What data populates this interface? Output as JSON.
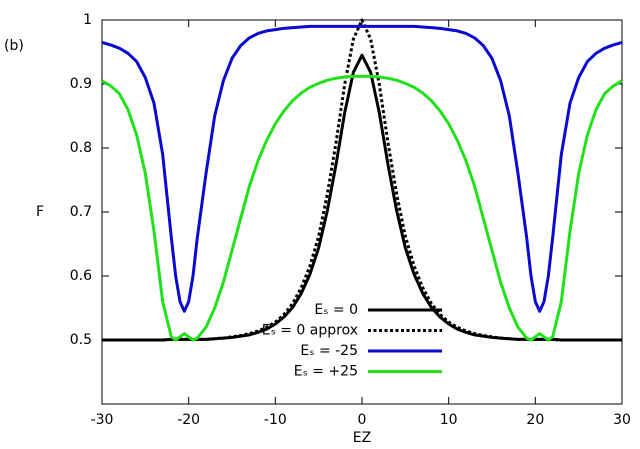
{
  "chart_data": {
    "type": "line",
    "panel_label": "(b)",
    "xlabel": "EZ",
    "ylabel": "F",
    "xlim": [
      -30,
      30
    ],
    "ylim": [
      0.4,
      1
    ],
    "xticks": [
      -30,
      -20,
      -10,
      0,
      10,
      20,
      30
    ],
    "yticks": [
      0.5,
      0.6,
      0.7,
      0.8,
      0.9,
      1
    ],
    "grid": false,
    "legend_position": "bottom-center",
    "x": [
      -30,
      -29,
      -28,
      -27,
      -26,
      -25,
      -24,
      -23,
      -22,
      -21.5,
      -21,
      -20.5,
      -20,
      -19.5,
      -19,
      -18,
      -17,
      -16,
      -15,
      -14,
      -13,
      -12,
      -11,
      -10,
      -9,
      -8,
      -7,
      -6,
      -5,
      -4,
      -3,
      -2,
      -1,
      0,
      1,
      2,
      3,
      4,
      5,
      6,
      7,
      8,
      9,
      10,
      11,
      12,
      13,
      14,
      15,
      16,
      17,
      18,
      19,
      19.5,
      20,
      20.5,
      21,
      21.5,
      22,
      23,
      24,
      25,
      26,
      27,
      28,
      29,
      30
    ],
    "series": [
      {
        "name": "Eₛ = 0",
        "color": "#000000",
        "dash": "solid",
        "values": [
          0.5,
          0.5,
          0.5,
          0.5,
          0.5,
          0.5,
          0.5,
          0.5,
          0.501,
          0.501,
          0.501,
          0.501,
          0.501,
          0.501,
          0.501,
          0.501,
          0.502,
          0.503,
          0.504,
          0.506,
          0.508,
          0.512,
          0.517,
          0.525,
          0.536,
          0.551,
          0.573,
          0.603,
          0.644,
          0.702,
          0.774,
          0.855,
          0.918,
          0.945,
          0.918,
          0.855,
          0.774,
          0.702,
          0.644,
          0.603,
          0.573,
          0.551,
          0.536,
          0.525,
          0.517,
          0.512,
          0.508,
          0.506,
          0.504,
          0.503,
          0.502,
          0.501,
          0.501,
          0.501,
          0.501,
          0.501,
          0.501,
          0.501,
          0.501,
          0.5,
          0.5,
          0.5,
          0.5,
          0.5,
          0.5,
          0.5,
          0.5
        ]
      },
      {
        "name": "Eₛ = 0 approx",
        "color": "#000000",
        "dash": "dotted",
        "values": [
          0.5,
          0.5,
          0.5,
          0.5,
          0.5,
          0.5,
          0.5,
          0.5,
          0.501,
          0.501,
          0.501,
          0.501,
          0.501,
          0.501,
          0.501,
          0.501,
          0.502,
          0.503,
          0.505,
          0.507,
          0.51,
          0.514,
          0.52,
          0.528,
          0.54,
          0.557,
          0.582,
          0.616,
          0.662,
          0.728,
          0.808,
          0.899,
          0.97,
          1,
          0.97,
          0.899,
          0.808,
          0.728,
          0.662,
          0.616,
          0.582,
          0.557,
          0.54,
          0.528,
          0.52,
          0.514,
          0.51,
          0.507,
          0.505,
          0.503,
          0.502,
          0.501,
          0.501,
          0.501,
          0.501,
          0.501,
          0.501,
          0.501,
          0.501,
          0.5,
          0.5,
          0.5,
          0.5,
          0.5,
          0.5,
          0.5,
          0.5
        ]
      },
      {
        "name": "Eₛ = -25",
        "color": "#0a0ad2",
        "dash": "solid",
        "values": [
          0.965,
          0.961,
          0.956,
          0.948,
          0.935,
          0.91,
          0.87,
          0.79,
          0.66,
          0.6,
          0.56,
          0.545,
          0.56,
          0.6,
          0.66,
          0.76,
          0.85,
          0.905,
          0.94,
          0.96,
          0.972,
          0.979,
          0.983,
          0.985,
          0.987,
          0.988,
          0.989,
          0.99,
          0.99,
          0.99,
          0.99,
          0.99,
          0.99,
          0.99,
          0.99,
          0.99,
          0.99,
          0.99,
          0.99,
          0.99,
          0.989,
          0.988,
          0.987,
          0.985,
          0.983,
          0.979,
          0.972,
          0.96,
          0.94,
          0.905,
          0.85,
          0.76,
          0.66,
          0.6,
          0.56,
          0.545,
          0.56,
          0.6,
          0.66,
          0.79,
          0.87,
          0.91,
          0.935,
          0.948,
          0.956,
          0.961,
          0.965
        ]
      },
      {
        "name": "Eₛ = +25",
        "color": "#22e01a",
        "dash": "solid",
        "values": [
          0.905,
          0.897,
          0.885,
          0.86,
          0.82,
          0.76,
          0.67,
          0.56,
          0.505,
          0.5,
          0.505,
          0.51,
          0.505,
          0.5,
          0.503,
          0.52,
          0.55,
          0.59,
          0.64,
          0.69,
          0.74,
          0.78,
          0.812,
          0.838,
          0.858,
          0.874,
          0.886,
          0.895,
          0.901,
          0.906,
          0.909,
          0.911,
          0.912,
          0.912,
          0.912,
          0.911,
          0.909,
          0.906,
          0.901,
          0.895,
          0.886,
          0.874,
          0.858,
          0.838,
          0.812,
          0.78,
          0.74,
          0.69,
          0.64,
          0.59,
          0.55,
          0.52,
          0.503,
          0.5,
          0.505,
          0.51,
          0.505,
          0.5,
          0.505,
          0.56,
          0.67,
          0.76,
          0.82,
          0.86,
          0.885,
          0.897,
          0.905
        ]
      }
    ]
  }
}
